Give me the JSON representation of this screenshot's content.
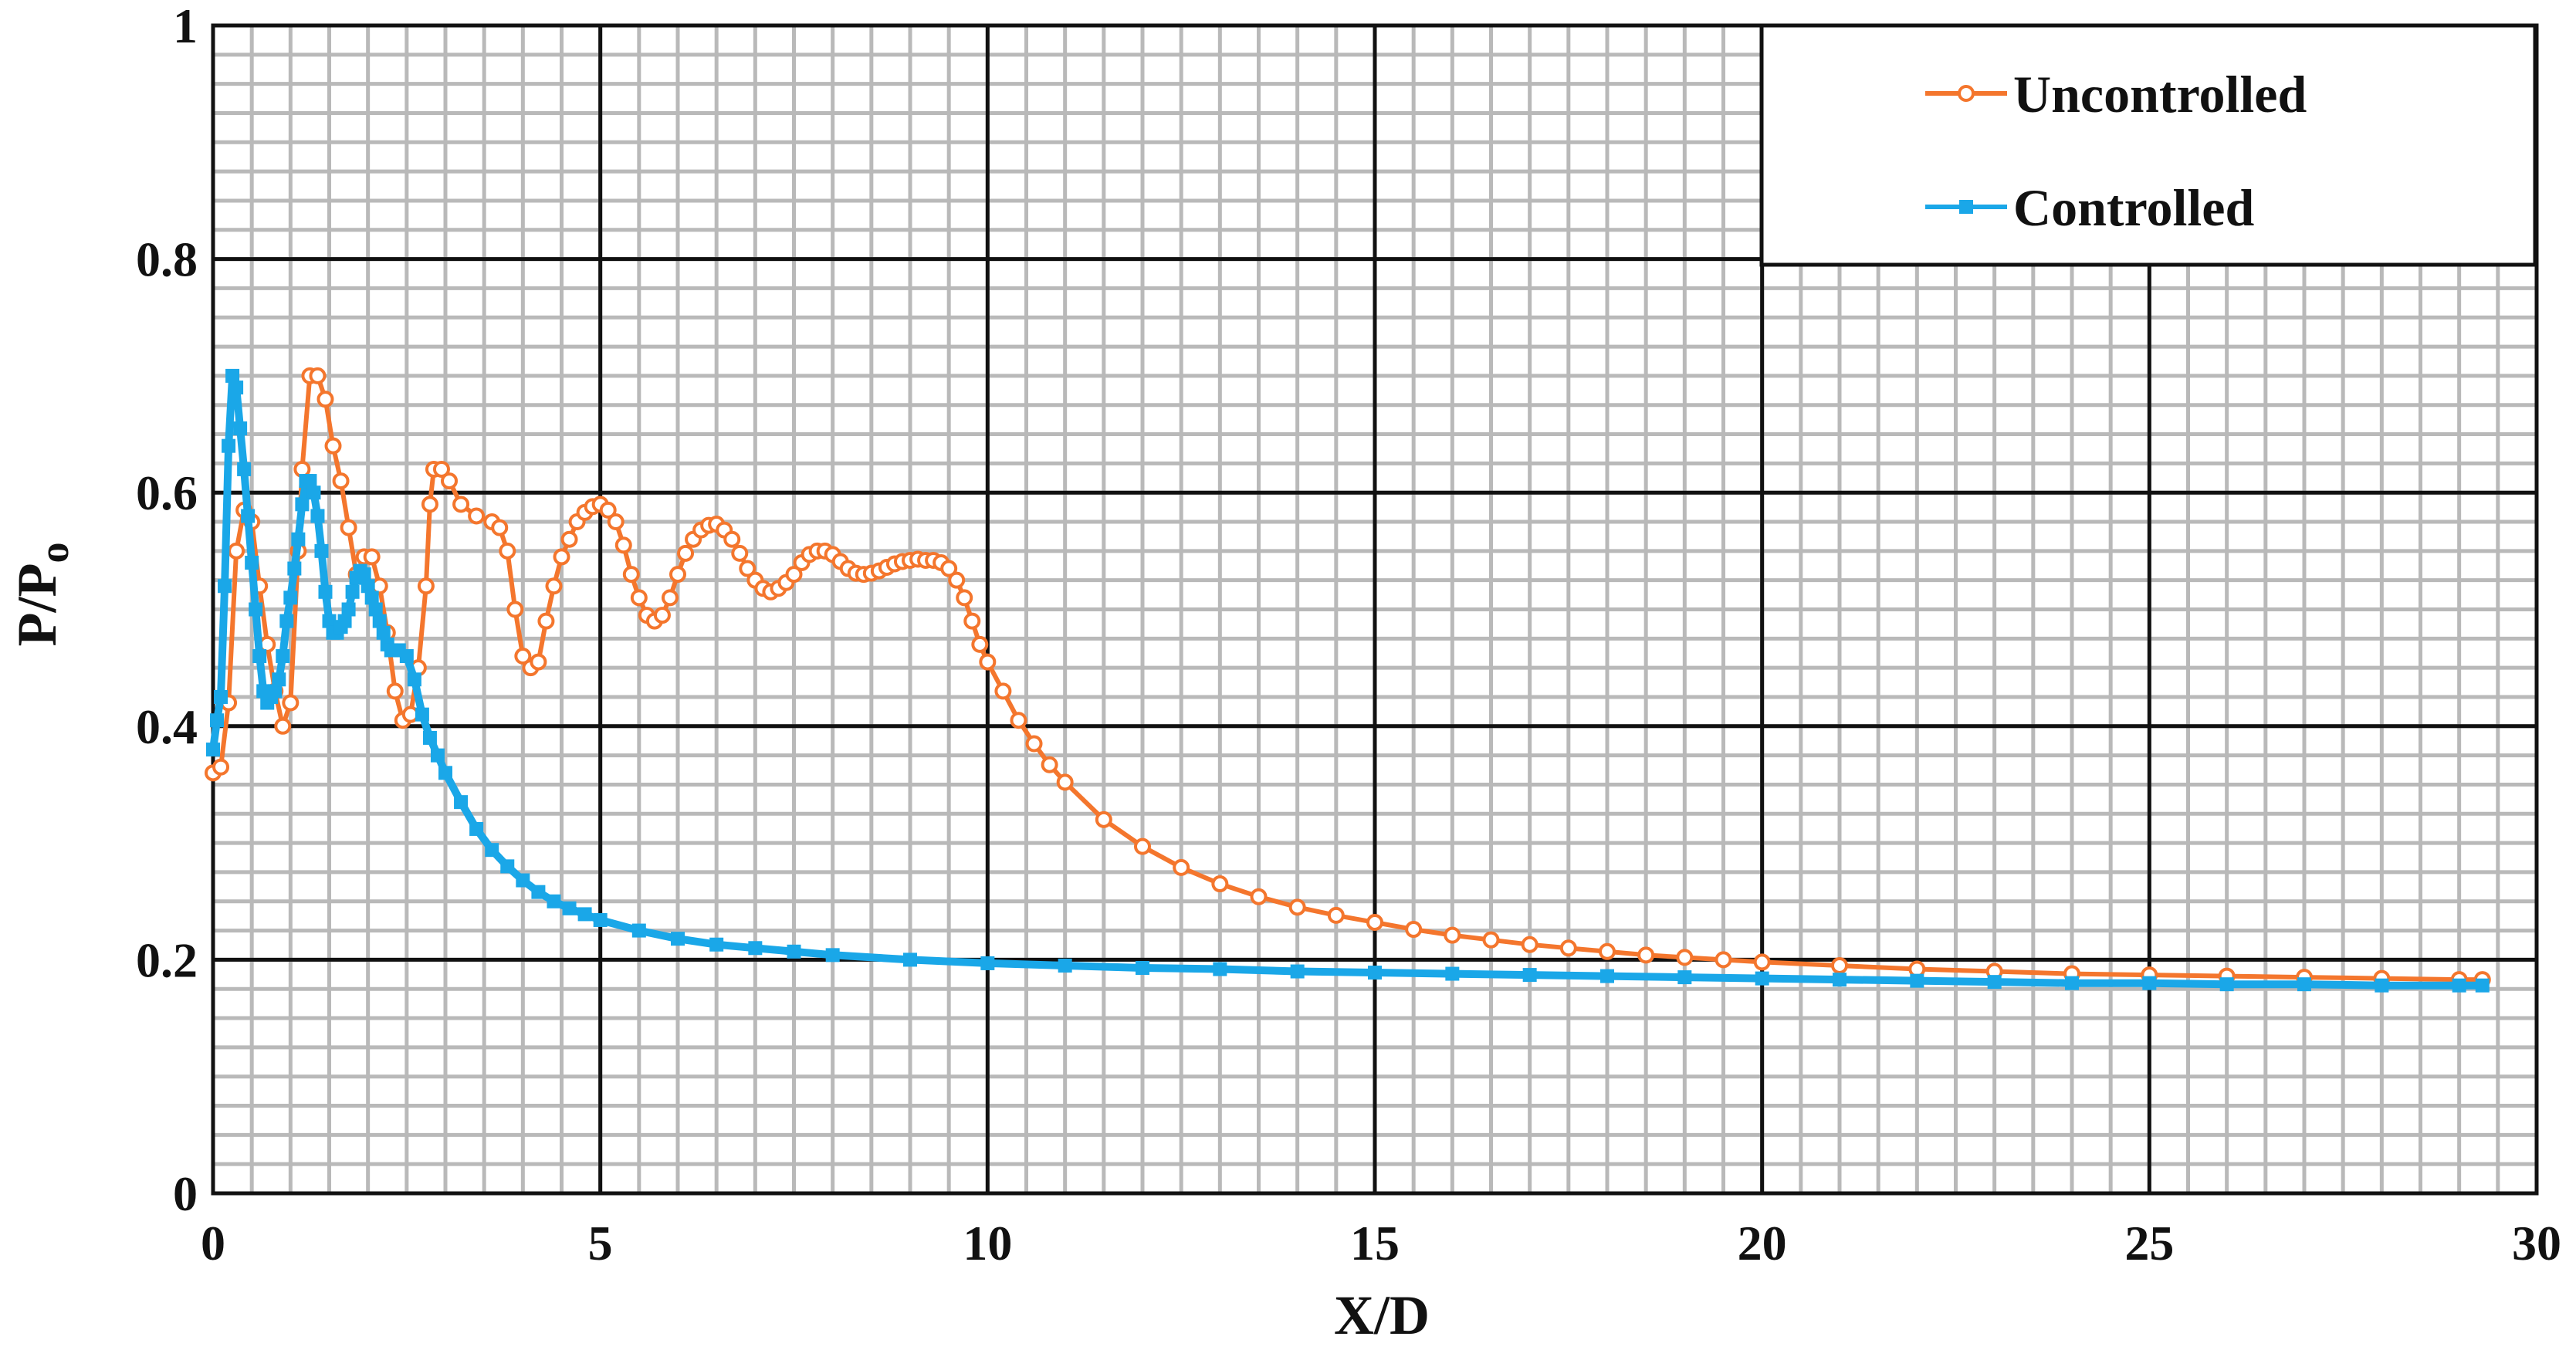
{
  "chart_data": {
    "type": "line",
    "title": "",
    "xlabel": "X/D",
    "ylabel_main": "P/P",
    "ylabel_sub": "o",
    "xlim": [
      0,
      30
    ],
    "ylim": [
      0,
      1
    ],
    "xticks": [
      0,
      5,
      10,
      15,
      20,
      25,
      30
    ],
    "yticks": [
      0,
      0.2,
      0.4,
      0.6,
      0.8,
      1
    ],
    "xtick_labels": [
      "0",
      "5",
      "10",
      "15",
      "20",
      "25",
      "30"
    ],
    "ytick_labels": [
      "0",
      "0.2",
      "0.4",
      "0.6",
      "0.8",
      "1"
    ],
    "grid": true,
    "minor_grid": true,
    "legend_position": "top-right",
    "series": [
      {
        "name": "Uncontrolled",
        "color": "#F4762D",
        "marker": "circle",
        "points": [
          [
            0.0,
            0.36
          ],
          [
            0.1,
            0.365
          ],
          [
            0.2,
            0.42
          ],
          [
            0.3,
            0.55
          ],
          [
            0.4,
            0.585
          ],
          [
            0.5,
            0.575
          ],
          [
            0.6,
            0.52
          ],
          [
            0.7,
            0.47
          ],
          [
            0.8,
            0.43
          ],
          [
            0.9,
            0.4
          ],
          [
            1.0,
            0.42
          ],
          [
            1.1,
            0.55
          ],
          [
            1.15,
            0.62
          ],
          [
            1.25,
            0.7
          ],
          [
            1.35,
            0.7
          ],
          [
            1.45,
            0.68
          ],
          [
            1.55,
            0.64
          ],
          [
            1.65,
            0.61
          ],
          [
            1.75,
            0.57
          ],
          [
            1.85,
            0.53
          ],
          [
            1.95,
            0.545
          ],
          [
            2.05,
            0.545
          ],
          [
            2.15,
            0.52
          ],
          [
            2.25,
            0.48
          ],
          [
            2.35,
            0.43
          ],
          [
            2.45,
            0.405
          ],
          [
            2.55,
            0.41
          ],
          [
            2.65,
            0.45
          ],
          [
            2.75,
            0.52
          ],
          [
            2.8,
            0.59
          ],
          [
            2.85,
            0.62
          ],
          [
            2.95,
            0.62
          ],
          [
            3.05,
            0.61
          ],
          [
            3.2,
            0.59
          ],
          [
            3.4,
            0.58
          ],
          [
            3.6,
            0.575
          ],
          [
            3.7,
            0.57
          ],
          [
            3.8,
            0.55
          ],
          [
            3.9,
            0.5
          ],
          [
            4.0,
            0.46
          ],
          [
            4.1,
            0.45
          ],
          [
            4.2,
            0.455
          ],
          [
            4.3,
            0.49
          ],
          [
            4.4,
            0.52
          ],
          [
            4.5,
            0.545
          ],
          [
            4.6,
            0.56
          ],
          [
            4.7,
            0.575
          ],
          [
            4.8,
            0.583
          ],
          [
            4.9,
            0.588
          ],
          [
            5.0,
            0.59
          ],
          [
            5.1,
            0.585
          ],
          [
            5.2,
            0.575
          ],
          [
            5.3,
            0.555
          ],
          [
            5.4,
            0.53
          ],
          [
            5.5,
            0.51
          ],
          [
            5.6,
            0.495
          ],
          [
            5.7,
            0.49
          ],
          [
            5.8,
            0.495
          ],
          [
            5.9,
            0.51
          ],
          [
            6.0,
            0.53
          ],
          [
            6.1,
            0.548
          ],
          [
            6.2,
            0.56
          ],
          [
            6.3,
            0.568
          ],
          [
            6.4,
            0.572
          ],
          [
            6.5,
            0.573
          ],
          [
            6.6,
            0.568
          ],
          [
            6.7,
            0.56
          ],
          [
            6.8,
            0.548
          ],
          [
            6.9,
            0.535
          ],
          [
            7.0,
            0.525
          ],
          [
            7.1,
            0.518
          ],
          [
            7.2,
            0.515
          ],
          [
            7.3,
            0.518
          ],
          [
            7.4,
            0.523
          ],
          [
            7.5,
            0.53
          ],
          [
            7.6,
            0.54
          ],
          [
            7.7,
            0.547
          ],
          [
            7.8,
            0.55
          ],
          [
            7.9,
            0.55
          ],
          [
            8.0,
            0.547
          ],
          [
            8.1,
            0.541
          ],
          [
            8.2,
            0.535
          ],
          [
            8.3,
            0.531
          ],
          [
            8.4,
            0.53
          ],
          [
            8.5,
            0.531
          ],
          [
            8.6,
            0.533
          ],
          [
            8.7,
            0.536
          ],
          [
            8.8,
            0.539
          ],
          [
            8.9,
            0.541
          ],
          [
            9.0,
            0.542
          ],
          [
            9.1,
            0.543
          ],
          [
            9.2,
            0.542
          ],
          [
            9.3,
            0.542
          ],
          [
            9.4,
            0.54
          ],
          [
            9.5,
            0.535
          ],
          [
            9.6,
            0.525
          ],
          [
            9.7,
            0.51
          ],
          [
            9.8,
            0.49
          ],
          [
            9.9,
            0.47
          ],
          [
            10.0,
            0.455
          ],
          [
            10.2,
            0.43
          ],
          [
            10.4,
            0.405
          ],
          [
            10.6,
            0.385
          ],
          [
            10.8,
            0.367
          ],
          [
            11.0,
            0.352
          ],
          [
            11.5,
            0.32
          ],
          [
            12.0,
            0.297
          ],
          [
            12.5,
            0.279
          ],
          [
            13.0,
            0.265
          ],
          [
            13.5,
            0.254
          ],
          [
            14.0,
            0.245
          ],
          [
            14.5,
            0.238
          ],
          [
            15.0,
            0.232
          ],
          [
            15.5,
            0.226
          ],
          [
            16.0,
            0.221
          ],
          [
            16.5,
            0.217
          ],
          [
            17.0,
            0.213
          ],
          [
            17.5,
            0.21
          ],
          [
            18.0,
            0.207
          ],
          [
            18.5,
            0.204
          ],
          [
            19.0,
            0.202
          ],
          [
            19.5,
            0.2
          ],
          [
            20.0,
            0.198
          ],
          [
            21.0,
            0.195
          ],
          [
            22.0,
            0.192
          ],
          [
            23.0,
            0.19
          ],
          [
            24.0,
            0.188
          ],
          [
            25.0,
            0.187
          ],
          [
            26.0,
            0.186
          ],
          [
            27.0,
            0.185
          ],
          [
            28.0,
            0.184
          ],
          [
            29.0,
            0.183
          ],
          [
            29.3,
            0.183
          ]
        ]
      },
      {
        "name": "Controlled",
        "color": "#1AA7E8",
        "marker": "square",
        "points": [
          [
            0.0,
            0.38
          ],
          [
            0.05,
            0.405
          ],
          [
            0.1,
            0.425
          ],
          [
            0.15,
            0.52
          ],
          [
            0.2,
            0.64
          ],
          [
            0.25,
            0.7
          ],
          [
            0.3,
            0.69
          ],
          [
            0.35,
            0.655
          ],
          [
            0.4,
            0.62
          ],
          [
            0.45,
            0.58
          ],
          [
            0.5,
            0.54
          ],
          [
            0.55,
            0.5
          ],
          [
            0.6,
            0.46
          ],
          [
            0.65,
            0.43
          ],
          [
            0.7,
            0.42
          ],
          [
            0.75,
            0.425
          ],
          [
            0.8,
            0.43
          ],
          [
            0.85,
            0.44
          ],
          [
            0.9,
            0.46
          ],
          [
            0.95,
            0.49
          ],
          [
            1.0,
            0.51
          ],
          [
            1.05,
            0.535
          ],
          [
            1.1,
            0.56
          ],
          [
            1.15,
            0.59
          ],
          [
            1.2,
            0.61
          ],
          [
            1.25,
            0.61
          ],
          [
            1.3,
            0.6
          ],
          [
            1.35,
            0.58
          ],
          [
            1.4,
            0.55
          ],
          [
            1.45,
            0.515
          ],
          [
            1.5,
            0.49
          ],
          [
            1.55,
            0.48
          ],
          [
            1.6,
            0.48
          ],
          [
            1.65,
            0.485
          ],
          [
            1.7,
            0.49
          ],
          [
            1.75,
            0.5
          ],
          [
            1.8,
            0.515
          ],
          [
            1.85,
            0.527
          ],
          [
            1.9,
            0.533
          ],
          [
            1.95,
            0.53
          ],
          [
            2.0,
            0.52
          ],
          [
            2.05,
            0.51
          ],
          [
            2.1,
            0.5
          ],
          [
            2.15,
            0.49
          ],
          [
            2.2,
            0.48
          ],
          [
            2.25,
            0.47
          ],
          [
            2.3,
            0.465
          ],
          [
            2.4,
            0.465
          ],
          [
            2.5,
            0.46
          ],
          [
            2.6,
            0.44
          ],
          [
            2.7,
            0.41
          ],
          [
            2.8,
            0.39
          ],
          [
            2.9,
            0.375
          ],
          [
            3.0,
            0.36
          ],
          [
            3.2,
            0.335
          ],
          [
            3.4,
            0.312
          ],
          [
            3.6,
            0.294
          ],
          [
            3.8,
            0.28
          ],
          [
            4.0,
            0.268
          ],
          [
            4.2,
            0.258
          ],
          [
            4.4,
            0.25
          ],
          [
            4.6,
            0.244
          ],
          [
            4.8,
            0.239
          ],
          [
            5.0,
            0.234
          ],
          [
            5.5,
            0.225
          ],
          [
            6.0,
            0.218
          ],
          [
            6.5,
            0.213
          ],
          [
            7.0,
            0.21
          ],
          [
            7.5,
            0.207
          ],
          [
            8.0,
            0.204
          ],
          [
            9.0,
            0.2
          ],
          [
            10.0,
            0.197
          ],
          [
            11.0,
            0.195
          ],
          [
            12.0,
            0.193
          ],
          [
            13.0,
            0.192
          ],
          [
            14.0,
            0.19
          ],
          [
            15.0,
            0.189
          ],
          [
            16.0,
            0.188
          ],
          [
            17.0,
            0.187
          ],
          [
            18.0,
            0.186
          ],
          [
            19.0,
            0.185
          ],
          [
            20.0,
            0.184
          ],
          [
            21.0,
            0.183
          ],
          [
            22.0,
            0.182
          ],
          [
            23.0,
            0.181
          ],
          [
            24.0,
            0.18
          ],
          [
            25.0,
            0.18
          ],
          [
            26.0,
            0.179
          ],
          [
            27.0,
            0.179
          ],
          [
            28.0,
            0.178
          ],
          [
            29.0,
            0.178
          ],
          [
            29.3,
            0.178
          ]
        ]
      }
    ]
  }
}
